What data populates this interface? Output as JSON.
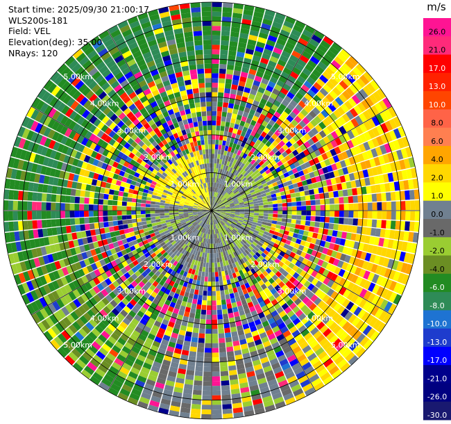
{
  "chart_data": {
    "type": "ppi-radar",
    "info": [
      "Start time: 2025/09/30 21:00:17",
      "WLS200s-181",
      "Field: VEL",
      "Elevation(deg): 35.00",
      "NRays: 120"
    ],
    "n_rays": 120,
    "max_range_km": 5.5,
    "range_rings_km": [
      1,
      2,
      3,
      4,
      5
    ],
    "range_labels": [
      "1.00km",
      "2.00km",
      "3.00km",
      "4.00km",
      "5.00km"
    ],
    "unit": "m/s",
    "colorbar": {
      "ticks": [
        {
          "label": "26.0",
          "value": 26.0
        },
        {
          "label": "21.0",
          "value": 21.0
        },
        {
          "label": "17.0",
          "value": 17.0
        },
        {
          "label": "13.0",
          "value": 13.0
        },
        {
          "label": "10.0",
          "value": 10.0
        },
        {
          "label": "8.0",
          "value": 8.0
        },
        {
          "label": "6.0",
          "value": 6.0
        },
        {
          "label": "4.0",
          "value": 4.0
        },
        {
          "label": "2.0",
          "value": 2.0
        },
        {
          "label": "1.0",
          "value": 1.0
        },
        {
          "label": "0.0",
          "value": 0.0
        },
        {
          "label": "-1.0",
          "value": -1.0
        },
        {
          "label": "-2.0",
          "value": -2.0
        },
        {
          "label": "-4.0",
          "value": -4.0
        },
        {
          "label": "-6.0",
          "value": -6.0
        },
        {
          "label": "-8.0",
          "value": -8.0
        },
        {
          "label": "-10.0",
          "value": -10.0
        },
        {
          "label": "-13.0",
          "value": -13.0
        },
        {
          "label": "-17.0",
          "value": -17.0
        },
        {
          "label": "-21.0",
          "value": -21.0
        },
        {
          "label": "-26.0",
          "value": -26.0
        },
        {
          "label": "-30.0",
          "value": -30.0
        }
      ],
      "colors": [
        "#ff1493",
        "#ff2a7a",
        "#ff0000",
        "#ff2200",
        "#ff4500",
        "#ff6347",
        "#ff7f50",
        "#ffa500",
        "#ffd700",
        "#ffff00",
        "#708090",
        "#696969",
        "#9acd32",
        "#6b8e23",
        "#228b22",
        "#2e8b57",
        "#1e73d2",
        "#1e3ccd",
        "#0000ff",
        "#00008b",
        "#000080",
        "#191970"
      ]
    }
  }
}
